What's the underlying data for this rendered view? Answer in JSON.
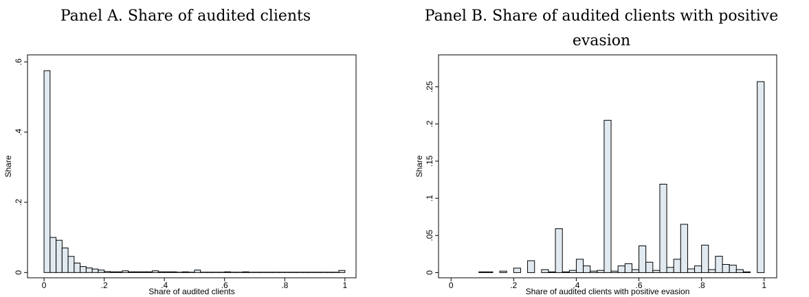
{
  "chart_data": [
    {
      "type": "histogram",
      "title": "Panel A. Share of audited clients",
      "xlabel": "Share of audited clients",
      "ylabel": "Share",
      "bins": [
        0,
        0.02,
        0.04,
        0.06,
        0.08,
        0.1,
        0.12,
        0.14,
        0.16,
        0.18,
        0.2,
        0.22,
        0.24,
        0.26,
        0.28,
        0.3,
        0.32,
        0.34,
        0.36,
        0.38,
        0.4,
        0.42,
        0.44,
        0.46,
        0.48,
        0.5,
        0.52,
        0.54,
        0.56,
        0.58,
        0.6,
        0.62,
        0.64,
        0.66,
        0.68,
        0.7,
        0.72,
        0.74,
        0.76,
        0.78,
        0.8,
        0.82,
        0.84,
        0.86,
        0.88,
        0.9,
        0.92,
        0.94,
        0.96,
        0.98,
        1
      ],
      "values": [
        0.575,
        0.1,
        0.092,
        0.07,
        0.046,
        0.027,
        0.017,
        0.013,
        0.01,
        0.007,
        0.003,
        0.002,
        0.002,
        0.005,
        0.002,
        0.002,
        0.002,
        0.002,
        0.005,
        0.002,
        0.002,
        0.002,
        0.001,
        0.002,
        0.001,
        0.007,
        0.001,
        0.001,
        0.001,
        0.001,
        0.002,
        0.001,
        0.001,
        0.002,
        0.001,
        0.001,
        0.001,
        0.001,
        0.001,
        0.001,
        0.001,
        0.001,
        0.001,
        0.001,
        0.001,
        0.001,
        0.001,
        0.001,
        0.001,
        0.006
      ],
      "color": "#e1eaf0",
      "edgecolor": "#000000",
      "xlim": [
        -0.055,
        1.037
      ],
      "ylim": [
        -0.015,
        0.62
      ],
      "xticks": [
        0,
        {
          "value": 0.2,
          "label": ".2"
        },
        {
          "value": 0.4,
          "label": ".4"
        },
        {
          "value": 0.6,
          "label": ".6"
        },
        {
          "value": 0.8,
          "label": ".8"
        },
        1
      ],
      "yticks": [
        0,
        {
          "value": 0.2,
          "label": ".2"
        },
        {
          "value": 0.4,
          "label": ".4"
        },
        {
          "value": 0.6,
          "label": ".6"
        }
      ],
      "grid": false
    },
    {
      "type": "histogram",
      "title": "Panel B. Share of audited clients with positive evasion",
      "xlabel": "Share of audited clients with positive evasion",
      "ylabel": "Share",
      "bins": [
        0,
        0.0222,
        0.0444,
        0.0667,
        0.0889,
        0.1111,
        0.1333,
        0.1556,
        0.1778,
        0.2,
        0.2222,
        0.2444,
        0.2667,
        0.2889,
        0.3111,
        0.3333,
        0.3556,
        0.3778,
        0.4,
        0.4222,
        0.4444,
        0.4667,
        0.4889,
        0.5111,
        0.5333,
        0.5556,
        0.5778,
        0.6,
        0.6222,
        0.6444,
        0.6667,
        0.6889,
        0.7111,
        0.7333,
        0.7556,
        0.7778,
        0.8,
        0.8222,
        0.8444,
        0.8667,
        0.8889,
        0.9111,
        0.9333,
        0.9556,
        0.9778,
        1
      ],
      "values": [
        0,
        0,
        0,
        0,
        0.001,
        0.001,
        0,
        0.002,
        0,
        0.006,
        0,
        0.016,
        0,
        0.004,
        0.001,
        0.059,
        0.001,
        0.003,
        0.018,
        0.009,
        0.002,
        0.003,
        0.205,
        0.002,
        0.009,
        0.012,
        0.004,
        0.036,
        0.014,
        0.003,
        0.119,
        0.007,
        0.018,
        0.065,
        0.005,
        0.009,
        0.037,
        0.004,
        0.022,
        0.011,
        0.01,
        0.004,
        0.001,
        0,
        0.257
      ],
      "color": "#e1eaf0",
      "edgecolor": "#000000",
      "xlim": [
        -0.04,
        1.04
      ],
      "ylim": [
        -0.007,
        0.293
      ],
      "xticks": [
        0,
        {
          "value": 0.2,
          "label": ".2"
        },
        {
          "value": 0.4,
          "label": ".4"
        },
        {
          "value": 0.6,
          "label": ".6"
        },
        {
          "value": 0.8,
          "label": ".8"
        },
        1
      ],
      "yticks": [
        0,
        {
          "value": 0.05,
          "label": ".05"
        },
        {
          "value": 0.1,
          "label": ".1"
        },
        {
          "value": 0.15,
          "label": ".15"
        },
        {
          "value": 0.2,
          "label": ".2"
        },
        {
          "value": 0.25,
          "label": ".25"
        }
      ],
      "grid": false
    }
  ]
}
